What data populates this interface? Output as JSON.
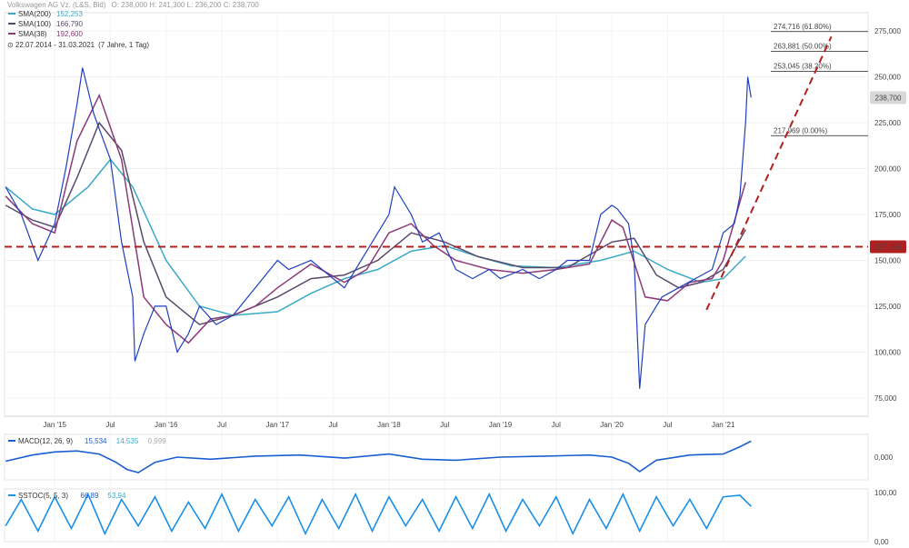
{
  "header": {
    "instrument": "Volkswagen AG Vz. (L&S, Bid)",
    "ohlc": "O: 238,000  H: 241,300  L: 236,200  C: 238,700",
    "range": "22.07.2014 - 31.03.2021",
    "range_note": "(7 Jahre, 1 Tag)"
  },
  "legend": [
    {
      "name": "SMA(200)",
      "value": "152,253",
      "color": "#3aa9c7"
    },
    {
      "name": "SMA(100)",
      "value": "166,790",
      "color": "#5a4a6a"
    },
    {
      "name": "SMA(38)",
      "value": "192,600",
      "color": "#8b3a78"
    }
  ],
  "chart_data": [
    {
      "type": "line",
      "title": "",
      "x_ticks": [
        "Jan '15",
        "Jul",
        "Jan '16",
        "Jul",
        "Jan '17",
        "Jul",
        "Jan '18",
        "Jul",
        "Jan '19",
        "Jul",
        "Jan '20",
        "Jul",
        "Jan '21"
      ],
      "y_ticks": [
        "75,000",
        "100,000",
        "125,000",
        "150,000",
        "175,000",
        "200,000",
        "225,000",
        "250,000",
        "275,000"
      ],
      "ylim": [
        65000,
        285000
      ],
      "xlim": [
        2014.55,
        2022.3
      ],
      "series": [
        {
          "name": "Volkswagen AG Vz. (L&S, Bid)",
          "color": "#1f3fbf",
          "x": [
            2014.56,
            2014.7,
            2014.85,
            2015.0,
            2015.1,
            2015.2,
            2015.25,
            2015.35,
            2015.5,
            2015.6,
            2015.7,
            2015.72,
            2015.8,
            2015.9,
            2016.0,
            2016.1,
            2016.2,
            2016.3,
            2016.45,
            2016.6,
            2016.8,
            2017.0,
            2017.1,
            2017.3,
            2017.5,
            2017.6,
            2017.8,
            2018.0,
            2018.05,
            2018.2,
            2018.3,
            2018.45,
            2018.6,
            2018.75,
            2018.9,
            2019.0,
            2019.2,
            2019.35,
            2019.5,
            2019.6,
            2019.8,
            2019.9,
            2020.0,
            2020.05,
            2020.15,
            2020.2,
            2020.25,
            2020.3,
            2020.45,
            2020.6,
            2020.75,
            2020.9,
            2021.0,
            2021.1,
            2021.15,
            2021.2,
            2021.22,
            2021.25
          ],
          "y": [
            190000,
            175000,
            150000,
            170000,
            200000,
            235000,
            255000,
            230000,
            205000,
            160000,
            130000,
            95000,
            110000,
            125000,
            125000,
            100000,
            110000,
            125000,
            115000,
            120000,
            135000,
            150000,
            145000,
            150000,
            140000,
            135000,
            155000,
            175000,
            190000,
            175000,
            160000,
            165000,
            145000,
            140000,
            145000,
            140000,
            145000,
            140000,
            145000,
            150000,
            150000,
            175000,
            180000,
            178000,
            170000,
            150000,
            80000,
            115000,
            130000,
            135000,
            140000,
            145000,
            165000,
            170000,
            185000,
            225000,
            250000,
            238700
          ]
        },
        {
          "name": "SMA(38)",
          "color": "#8b3a78",
          "x": [
            2014.56,
            2014.8,
            2015.0,
            2015.2,
            2015.4,
            2015.6,
            2015.8,
            2016.0,
            2016.2,
            2016.4,
            2016.6,
            2016.8,
            2017.0,
            2017.3,
            2017.6,
            2017.8,
            2018.0,
            2018.2,
            2018.4,
            2018.6,
            2018.9,
            2019.2,
            2019.5,
            2019.8,
            2020.0,
            2020.1,
            2020.3,
            2020.5,
            2020.7,
            2020.9,
            2021.0,
            2021.2
          ],
          "y": [
            185000,
            170000,
            165000,
            215000,
            240000,
            205000,
            130000,
            115000,
            105000,
            118000,
            120000,
            125000,
            135000,
            148000,
            138000,
            145000,
            165000,
            170000,
            158000,
            150000,
            145000,
            143000,
            145000,
            148000,
            172000,
            168000,
            130000,
            128000,
            138000,
            140000,
            150000,
            192600
          ]
        },
        {
          "name": "SMA(100)",
          "color": "#5a4a6a",
          "x": [
            2014.56,
            2014.8,
            2015.0,
            2015.2,
            2015.4,
            2015.6,
            2015.8,
            2016.0,
            2016.3,
            2016.6,
            2017.0,
            2017.3,
            2017.6,
            2017.9,
            2018.2,
            2018.5,
            2018.8,
            2019.2,
            2019.6,
            2020.0,
            2020.2,
            2020.4,
            2020.6,
            2020.8,
            2021.0,
            2021.2
          ],
          "y": [
            180000,
            172000,
            168000,
            195000,
            225000,
            210000,
            160000,
            130000,
            115000,
            120000,
            130000,
            140000,
            142000,
            150000,
            165000,
            160000,
            152000,
            146000,
            146000,
            160000,
            162000,
            142000,
            135000,
            138000,
            145000,
            166790
          ]
        },
        {
          "name": "SMA(200)",
          "color": "#3aa9c7",
          "x": [
            2014.56,
            2014.8,
            2015.0,
            2015.3,
            2015.5,
            2015.7,
            2016.0,
            2016.3,
            2016.6,
            2017.0,
            2017.3,
            2017.6,
            2017.9,
            2018.2,
            2018.5,
            2018.8,
            2019.1,
            2019.5,
            2019.9,
            2020.2,
            2020.5,
            2020.8,
            2021.0,
            2021.2
          ],
          "y": [
            190000,
            178000,
            175000,
            190000,
            205000,
            190000,
            150000,
            125000,
            120000,
            122000,
            132000,
            140000,
            145000,
            155000,
            158000,
            152000,
            147000,
            146000,
            150000,
            155000,
            145000,
            138000,
            140000,
            152253
          ]
        }
      ],
      "horizontal_lines": [
        {
          "label": "274,716 (61.80%)",
          "value": 274716
        },
        {
          "label": "263,881 (50.00%)",
          "value": 263881
        },
        {
          "label": "253,045 (38.20%)",
          "value": 253045
        },
        {
          "label": "217,969 (0.00%)",
          "value": 217969
        }
      ],
      "support_line": {
        "value": 157395,
        "label": "157,395",
        "color": "#b02020"
      },
      "trend_line": {
        "x": [
          2020.85,
          2021.97
        ],
        "y": [
          123000,
          272000
        ],
        "color": "#b02020"
      },
      "last_price": {
        "value": 238700,
        "label": "238,700"
      }
    },
    {
      "type": "line",
      "title": "MACD(12, 26, 9)",
      "legend_values": [
        "15,534",
        "14,535",
        "0,999"
      ],
      "y_ticks": [
        "0,000"
      ],
      "ylim": [
        -22,
        22
      ],
      "series": [
        {
          "name": "MACD",
          "color": "#1a5fd0",
          "x": [
            2014.56,
            2014.8,
            2015.0,
            2015.2,
            2015.4,
            2015.55,
            2015.65,
            2015.75,
            2015.9,
            2016.1,
            2016.4,
            2016.8,
            2017.2,
            2017.6,
            2018.0,
            2018.3,
            2018.6,
            2019.0,
            2019.4,
            2019.8,
            2020.0,
            2020.15,
            2020.25,
            2020.4,
            2020.7,
            2021.0,
            2021.15,
            2021.25
          ],
          "y": [
            -4,
            2,
            5,
            6,
            3,
            -5,
            -12,
            -15,
            -5,
            0,
            -2,
            1,
            2,
            -1,
            3,
            -2,
            -3,
            0,
            1,
            2,
            0,
            -6,
            -14,
            -3,
            2,
            3,
            10,
            15.5
          ]
        }
      ]
    },
    {
      "type": "line",
      "title": "SSTOC(5, 5, 3)",
      "legend_values": [
        "66,89",
        "53,94"
      ],
      "y_ticks": [
        "100,00",
        "0,00"
      ],
      "ylim": [
        0,
        100
      ],
      "series": [
        {
          "name": "SSTOC",
          "color": "#1a8fe8",
          "x": [
            2014.56,
            2014.7,
            2014.85,
            2015.0,
            2015.15,
            2015.3,
            2015.45,
            2015.6,
            2015.75,
            2015.9,
            2016.05,
            2016.2,
            2016.35,
            2016.5,
            2016.65,
            2016.8,
            2016.95,
            2017.1,
            2017.25,
            2017.4,
            2017.55,
            2017.7,
            2017.85,
            2018.0,
            2018.15,
            2018.3,
            2018.45,
            2018.6,
            2018.75,
            2018.9,
            2019.05,
            2019.2,
            2019.35,
            2019.5,
            2019.65,
            2019.8,
            2019.95,
            2020.1,
            2020.25,
            2020.4,
            2020.55,
            2020.7,
            2020.85,
            2021.0,
            2021.15,
            2021.25
          ],
          "y": [
            30,
            80,
            20,
            85,
            25,
            90,
            15,
            80,
            30,
            85,
            20,
            75,
            25,
            90,
            20,
            80,
            30,
            85,
            15,
            80,
            25,
            90,
            20,
            85,
            30,
            80,
            20,
            85,
            25,
            90,
            20,
            80,
            30,
            85,
            15,
            80,
            25,
            90,
            20,
            85,
            30,
            80,
            25,
            85,
            88,
            66.89
          ]
        }
      ]
    }
  ]
}
